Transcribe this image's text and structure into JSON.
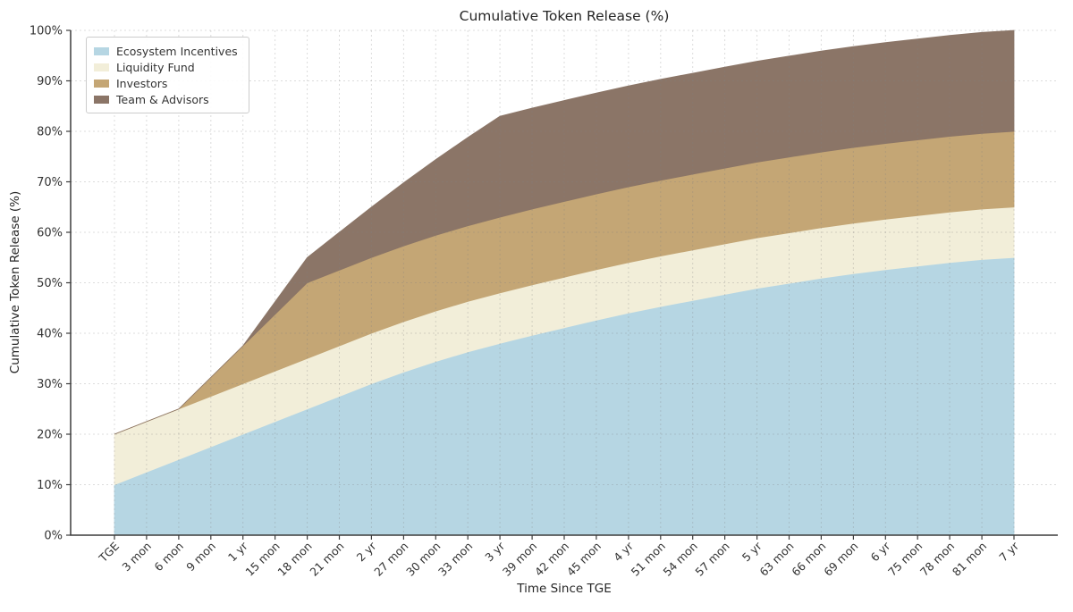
{
  "chart_data": {
    "type": "area",
    "stacked": true,
    "title": "Cumulative Token Release (%)",
    "xlabel": "Time Since TGE",
    "ylabel": "Cumulative Token Release (%)",
    "ylim": [
      0,
      100
    ],
    "grid": "dashed-both-axes",
    "legend_position": "upper-left",
    "x_months": [
      0,
      3,
      6,
      9,
      12,
      15,
      18,
      21,
      24,
      27,
      30,
      33,
      36,
      39,
      42,
      45,
      48,
      51,
      54,
      57,
      60,
      63,
      66,
      69,
      72,
      75,
      78,
      81,
      84
    ],
    "x_tick_labels": [
      "TGE",
      "3 mon",
      "6 mon",
      "9 mon",
      "1 yr",
      "15 mon",
      "18 mon",
      "21 mon",
      "2 yr",
      "27 mon",
      "30 mon",
      "33 mon",
      "3 yr",
      "39 mon",
      "42 mon",
      "45 mon",
      "4 yr",
      "51 mon",
      "54 mon",
      "57 mon",
      "5 yr",
      "63 mon",
      "66 mon",
      "69 mon",
      "6 yr",
      "75 mon",
      "78 mon",
      "81 mon",
      "7 yr"
    ],
    "y_tick_labels": [
      "0%",
      "10%",
      "20%",
      "30%",
      "40%",
      "50%",
      "60%",
      "70%",
      "80%",
      "90%",
      "100%"
    ],
    "series": [
      {
        "name": "Ecosystem Incentives",
        "color": "#b6d6e3",
        "values": [
          10,
          12.5,
          15,
          17.5,
          20,
          22.5,
          25,
          27.5,
          30,
          32.3,
          34.4,
          36.3,
          38,
          39.6,
          41.1,
          42.6,
          44,
          45.3,
          46.5,
          47.7,
          48.9,
          49.9,
          50.9,
          51.8,
          52.6,
          53.3,
          54,
          54.6,
          55
        ]
      },
      {
        "name": "Liquidity Fund",
        "color": "#f2eed9",
        "values": [
          10,
          10,
          10,
          10,
          10,
          10,
          10,
          10,
          10,
          10,
          10,
          10,
          10,
          10,
          10,
          10,
          10,
          10,
          10,
          10,
          10,
          10,
          10,
          10,
          10,
          10,
          10,
          10,
          10
        ]
      },
      {
        "name": "Investors",
        "color": "#c4a675",
        "values": [
          0,
          0,
          0,
          3.75,
          7.5,
          11.25,
          15,
          15,
          15,
          15,
          15,
          15,
          15,
          15,
          15,
          15,
          15,
          15,
          15,
          15,
          15,
          15,
          15,
          15,
          15,
          15,
          15,
          15,
          15
        ]
      },
      {
        "name": "Team & Advisors",
        "color": "#8b7567",
        "values": [
          0,
          0,
          0,
          0,
          0,
          2.5,
          5,
          7.5,
          10,
          12.5,
          15,
          17.5,
          20,
          20,
          20,
          20,
          20,
          20,
          20,
          20,
          20,
          20,
          20,
          20,
          20,
          20,
          20,
          20,
          20
        ]
      }
    ],
    "colors": {
      "grid": "#d9d9d9",
      "spine": "#3b3b3b",
      "tick_text": "#333333",
      "title_text": "#262626"
    }
  }
}
